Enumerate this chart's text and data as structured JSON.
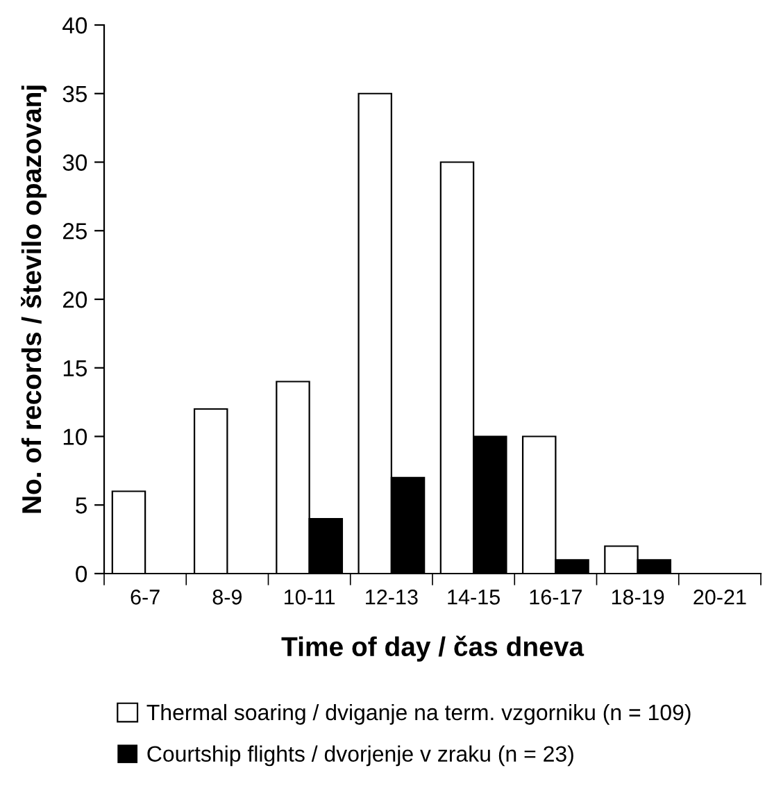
{
  "chart_data": {
    "type": "bar",
    "xlabel": "Time of day / čas dneva",
    "ylabel": "No. of records / število opazovanj",
    "categories": [
      "6-7",
      "8-9",
      "10-11",
      "12-13",
      "14-15",
      "16-17",
      "18-19",
      "20-21"
    ],
    "series": [
      {
        "name": "Thermal soaring / dviganje na term. vzgorniku (n = 109)",
        "color": "#ffffff",
        "values": [
          6,
          12,
          14,
          35,
          30,
          10,
          2,
          0
        ]
      },
      {
        "name": "Courtship flights / dvorjenje v zraku (n = 23)",
        "color": "#000000",
        "values": [
          0,
          0,
          4,
          7,
          10,
          1,
          1,
          0
        ]
      }
    ],
    "ylim": [
      0,
      40
    ],
    "yticks": [
      0,
      5,
      10,
      15,
      20,
      25,
      30,
      35,
      40
    ],
    "grid": false,
    "legend": "bottom"
  }
}
